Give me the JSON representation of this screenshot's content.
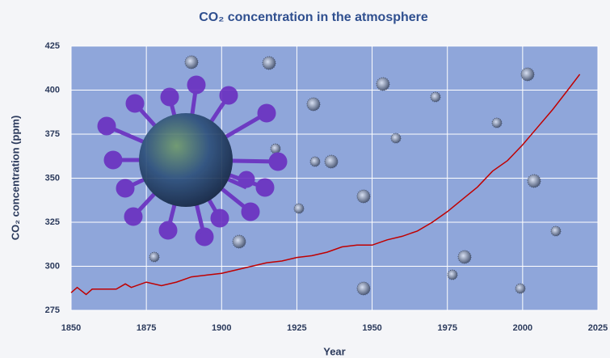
{
  "chart_data": {
    "type": "line",
    "title": "CO₂ concentration in the atmosphere",
    "x_label": "Year",
    "y_label": "CO₂ concentration (ppm)",
    "x": [
      1850,
      1852,
      1855,
      1857,
      1860,
      1865,
      1868,
      1870,
      1875,
      1880,
      1885,
      1890,
      1895,
      1900,
      1905,
      1910,
      1915,
      1920,
      1925,
      1930,
      1935,
      1940,
      1945,
      1950,
      1955,
      1960,
      1965,
      1970,
      1975,
      1980,
      1985,
      1990,
      1995,
      2000,
      2005,
      2010,
      2015,
      2019
    ],
    "values": [
      285,
      288,
      284,
      287,
      287,
      287,
      290,
      288,
      291,
      289,
      291,
      294,
      295,
      296,
      298,
      300,
      302,
      303,
      305,
      306,
      308,
      311,
      312,
      312,
      315,
      317,
      320,
      325,
      331,
      338,
      345,
      354,
      360,
      369,
      379,
      389,
      400,
      409
    ],
    "color": "#c00000",
    "xlim": [
      1850,
      2025
    ],
    "xticks": [
      1850,
      1875,
      1900,
      1925,
      1950,
      1975,
      2000,
      2025
    ],
    "ylim": [
      275,
      425
    ],
    "yticks": [
      275,
      300,
      325,
      350,
      375,
      400,
      425
    ],
    "grid": true
  }
}
